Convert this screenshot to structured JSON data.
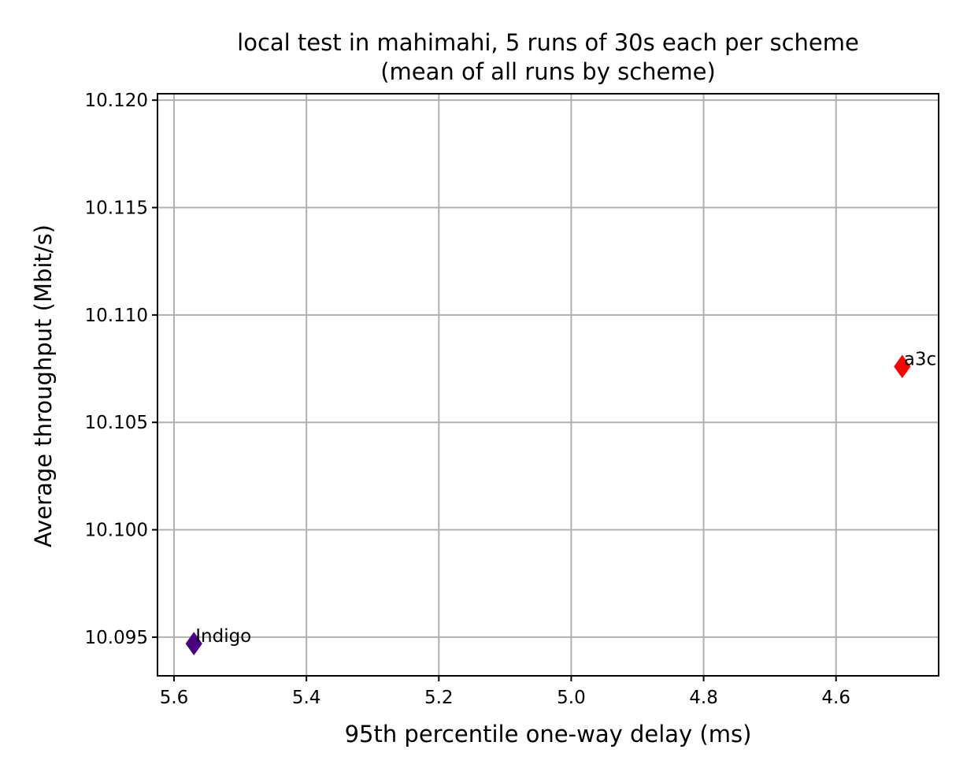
{
  "chart_data": {
    "type": "scatter",
    "title": "local test in mahimahi, 5 runs of 30s each per scheme",
    "subtitle": "(mean of all runs by scheme)",
    "xlabel": "95th percentile one-way delay (ms)",
    "ylabel": "Average throughput (Mbit/s)",
    "x_inverted": true,
    "xlim": [
      5.625,
      4.445
    ],
    "ylim": [
      10.0932,
      10.1203
    ],
    "x_ticks": [
      5.6,
      5.4,
      5.2,
      5.0,
      4.8,
      4.6
    ],
    "x_tick_labels": [
      "5.6",
      "5.4",
      "5.2",
      "5.0",
      "4.8",
      "4.6"
    ],
    "y_ticks": [
      10.095,
      10.1,
      10.105,
      10.11,
      10.115,
      10.12
    ],
    "y_tick_labels": [
      "10.095",
      "10.100",
      "10.105",
      "10.110",
      "10.115",
      "10.120"
    ],
    "grid": true,
    "marker": "diamond",
    "series": [
      {
        "name": "Indigo",
        "x": 5.57,
        "y": 10.0947,
        "color": "#4b0082"
      },
      {
        "name": "a3c",
        "x": 4.5,
        "y": 10.1076,
        "color": "#ff0000"
      }
    ]
  }
}
